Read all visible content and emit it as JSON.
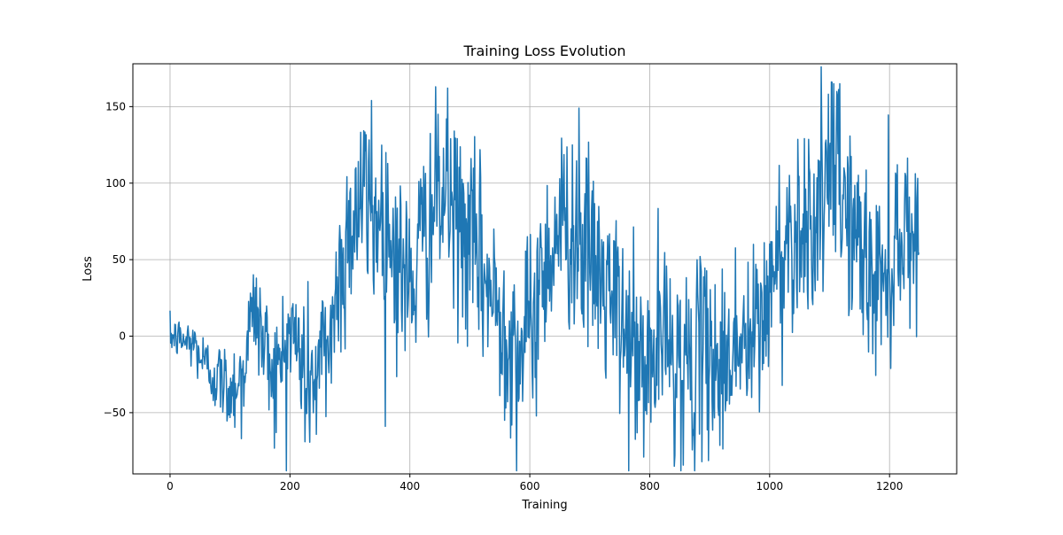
{
  "chart_data": {
    "type": "line",
    "title": "Training Loss Evolution",
    "xlabel": "Training",
    "ylabel": "Loss",
    "xlim": [
      -62,
      1312
    ],
    "ylim": [
      -90,
      178
    ],
    "xticks": [
      0,
      200,
      400,
      600,
      800,
      1000,
      1200
    ],
    "yticks": [
      -50,
      0,
      50,
      100,
      150
    ],
    "xtick_labels": [
      "0",
      "200",
      "400",
      "600",
      "800",
      "1000",
      "1200"
    ],
    "ytick_labels": [
      "−50",
      "0",
      "50",
      "100",
      "150"
    ],
    "grid": true,
    "series": [
      {
        "name": "",
        "color": "#1f77b4",
        "x_start": 0,
        "x_step": 1,
        "x_end": 1249,
        "trend_points": [
          [
            0,
            0
          ],
          [
            40,
            -5
          ],
          [
            60,
            -20
          ],
          [
            100,
            -35
          ],
          [
            120,
            -25
          ],
          [
            140,
            20
          ],
          [
            160,
            -10
          ],
          [
            180,
            -25
          ],
          [
            200,
            5
          ],
          [
            220,
            -15
          ],
          [
            240,
            -30
          ],
          [
            260,
            -10
          ],
          [
            280,
            30
          ],
          [
            300,
            75
          ],
          [
            320,
            90
          ],
          [
            340,
            80
          ],
          [
            360,
            75
          ],
          [
            380,
            50
          ],
          [
            400,
            30
          ],
          [
            420,
            60
          ],
          [
            440,
            85
          ],
          [
            460,
            90
          ],
          [
            480,
            75
          ],
          [
            500,
            60
          ],
          [
            520,
            45
          ],
          [
            540,
            20
          ],
          [
            560,
            10
          ],
          [
            580,
            -10
          ],
          [
            600,
            0
          ],
          [
            620,
            40
          ],
          [
            640,
            65
          ],
          [
            660,
            75
          ],
          [
            680,
            65
          ],
          [
            700,
            50
          ],
          [
            720,
            35
          ],
          [
            740,
            20
          ],
          [
            760,
            0
          ],
          [
            780,
            -15
          ],
          [
            800,
            -20
          ],
          [
            820,
            0
          ],
          [
            840,
            -10
          ],
          [
            860,
            -20
          ],
          [
            880,
            -20
          ],
          [
            900,
            -5
          ],
          [
            920,
            -25
          ],
          [
            940,
            0
          ],
          [
            960,
            -10
          ],
          [
            980,
            0
          ],
          [
            1000,
            30
          ],
          [
            1020,
            55
          ],
          [
            1040,
            70
          ],
          [
            1060,
            75
          ],
          [
            1080,
            80
          ],
          [
            1100,
            100
          ],
          [
            1120,
            95
          ],
          [
            1140,
            70
          ],
          [
            1160,
            45
          ],
          [
            1180,
            35
          ],
          [
            1200,
            50
          ],
          [
            1220,
            70
          ],
          [
            1249,
            70
          ]
        ],
        "noise_amplitude_start": 6,
        "noise_amplitude_end": 32,
        "extremes": [
          [
            336,
            154
          ],
          [
            461,
            142
          ],
          [
            682,
            149
          ],
          [
            790,
            -79
          ],
          [
            1107,
            165
          ],
          [
            1113,
            157
          ],
          [
            1117,
            165
          ],
          [
            225,
            -69
          ],
          [
            119,
            -67
          ],
          [
            177,
            -63
          ]
        ]
      }
    ]
  }
}
